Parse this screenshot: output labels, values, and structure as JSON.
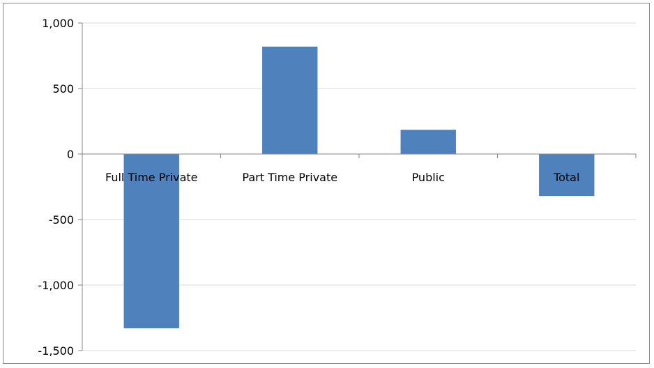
{
  "chart_data": {
    "type": "bar",
    "title": "",
    "xlabel": "",
    "ylabel": "",
    "categories": [
      "Full Time Private",
      "Part Time Private",
      "Public",
      "Total"
    ],
    "values": [
      -1330,
      820,
      185,
      -320
    ],
    "ylim": [
      -1500,
      1000
    ],
    "yticks": [
      1000,
      500,
      0,
      -500,
      -1000,
      -1500
    ],
    "ytick_labels": [
      "1,000",
      "500",
      "0",
      "-500",
      "-1,000",
      "-1,500"
    ],
    "grid": true,
    "legend": "none",
    "colors": {
      "bar": "#4f81bd",
      "grid": "#d9d9d9",
      "axis": "#868686"
    }
  }
}
